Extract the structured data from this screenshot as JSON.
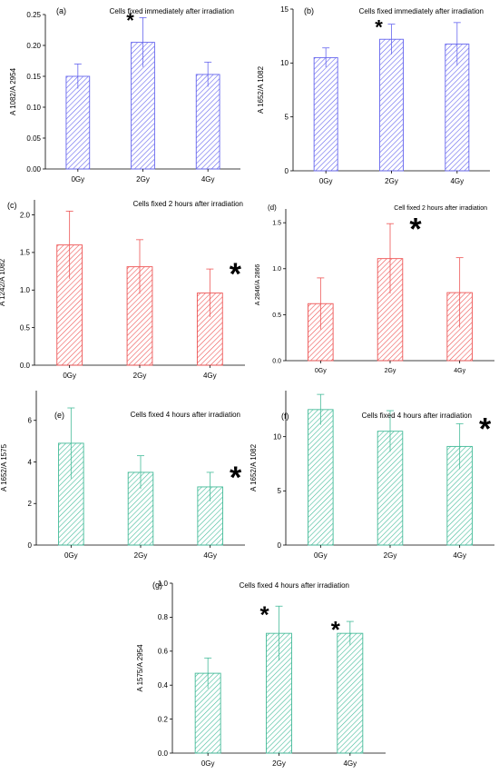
{
  "colors": {
    "blue": "#6666ee",
    "red": "#ee5555",
    "green": "#44bb99",
    "axis": "#000000"
  },
  "chart_data": [
    {
      "id": "a",
      "type": "bar",
      "letter": "(a)",
      "title": "Cells fixed immediately after irradiation",
      "ylabel": "A 1082/A 2954",
      "xlabel": "",
      "color": "blue",
      "categories": [
        "0Gy",
        "2Gy",
        "4Gy"
      ],
      "values": [
        0.15,
        0.205,
        0.153
      ],
      "errors": [
        0.02,
        0.04,
        0.02
      ],
      "ylim": [
        0,
        0.25
      ],
      "yticks": [
        0.0,
        0.05,
        0.1,
        0.15,
        0.2,
        0.25
      ],
      "tick_decimals": 2,
      "annotations": [
        {
          "text": "*",
          "category": "2Gy"
        }
      ]
    },
    {
      "id": "b",
      "type": "bar",
      "letter": "(b)",
      "title": "Cells fixed immediately after irradiation",
      "ylabel": "A 1652/A 1082",
      "xlabel": "",
      "color": "blue",
      "categories": [
        "0Gy",
        "2Gy",
        "4Gy"
      ],
      "values": [
        10.5,
        12.2,
        11.75
      ],
      "errors": [
        0.9,
        1.4,
        2.0
      ],
      "ylim": [
        0,
        15
      ],
      "yticks": [
        0,
        5,
        10,
        15
      ],
      "tick_decimals": 0,
      "annotations": [
        {
          "text": "*",
          "category": "2Gy"
        }
      ]
    },
    {
      "id": "c",
      "type": "bar",
      "letter": "(c)",
      "title": "Cells fixed 2 hours after irradiation",
      "ylabel": "A 1242/A 1082",
      "xlabel": "",
      "color": "red",
      "categories": [
        "0Gy",
        "2Gy",
        "4Gy"
      ],
      "values": [
        1.6,
        1.31,
        0.96
      ],
      "errors": [
        0.45,
        0.36,
        0.32
      ],
      "ylim": [
        0,
        2.2
      ],
      "yticks": [
        0.0,
        0.5,
        1.0,
        1.5,
        2.0
      ],
      "tick_decimals": 1,
      "annotations": [
        {
          "text": "*",
          "category": "4Gy"
        }
      ]
    },
    {
      "id": "d",
      "type": "bar",
      "letter": "(d)",
      "title": "Cell fixed 2 hours after irradiation",
      "ylabel": "A 2846/A 2866",
      "xlabel": "",
      "color": "red",
      "categories": [
        "0Gy",
        "2Gy",
        "4Gy"
      ],
      "values": [
        0.62,
        1.11,
        0.74
      ],
      "errors": [
        0.28,
        0.38,
        0.38
      ],
      "ylim": [
        0,
        1.65
      ],
      "yticks": [
        0.0,
        0.5,
        1.0,
        1.5
      ],
      "tick_decimals": 1,
      "annotations": [
        {
          "text": "*",
          "category": "2Gy"
        }
      ]
    },
    {
      "id": "e",
      "type": "bar",
      "letter": "(e)",
      "title": "Cells fixed 4 hours after irradiation",
      "ylabel": "A 1652/A 1575",
      "xlabel": "",
      "color": "green",
      "categories": [
        "0Gy",
        "2Gy",
        "4Gy"
      ],
      "values": [
        4.9,
        3.5,
        2.8
      ],
      "errors": [
        1.7,
        0.8,
        0.7
      ],
      "ylim": [
        0,
        8
      ],
      "yticks": [
        0,
        2,
        4,
        6,
        8
      ],
      "tick_decimals": 0,
      "annotations": [
        {
          "text": "*",
          "category": "4Gy"
        }
      ]
    },
    {
      "id": "f",
      "type": "bar",
      "letter": "(f)",
      "title": "Cells fixed 4 hours after irradiation",
      "ylabel": "A 1652/A 1082",
      "xlabel": "",
      "color": "green",
      "categories": [
        "0Gy",
        "2Gy",
        "4Gy"
      ],
      "values": [
        12.5,
        10.5,
        9.1
      ],
      "errors": [
        1.4,
        1.9,
        2.1
      ],
      "ylim": [
        0,
        15
      ],
      "yticks": [
        0,
        5,
        10,
        15
      ],
      "tick_decimals": 0,
      "annotations": [
        {
          "text": "*",
          "category": "4Gy"
        }
      ]
    },
    {
      "id": "g",
      "type": "bar",
      "letter": "(g)",
      "title": "Cells fixed 4 hours after irradiation",
      "ylabel": "A 1575/A 2954",
      "xlabel": "",
      "color": "green",
      "categories": [
        "0Gy",
        "2Gy",
        "4Gy"
      ],
      "values": [
        0.47,
        0.705,
        0.705
      ],
      "errors": [
        0.09,
        0.16,
        0.07
      ],
      "ylim": [
        0,
        1.0
      ],
      "yticks": [
        0.0,
        0.2,
        0.4,
        0.6,
        0.8,
        1.0
      ],
      "tick_decimals": 1,
      "annotations": [
        {
          "text": "*",
          "category": "2Gy"
        },
        {
          "text": "*",
          "category": "4Gy"
        }
      ]
    }
  ]
}
